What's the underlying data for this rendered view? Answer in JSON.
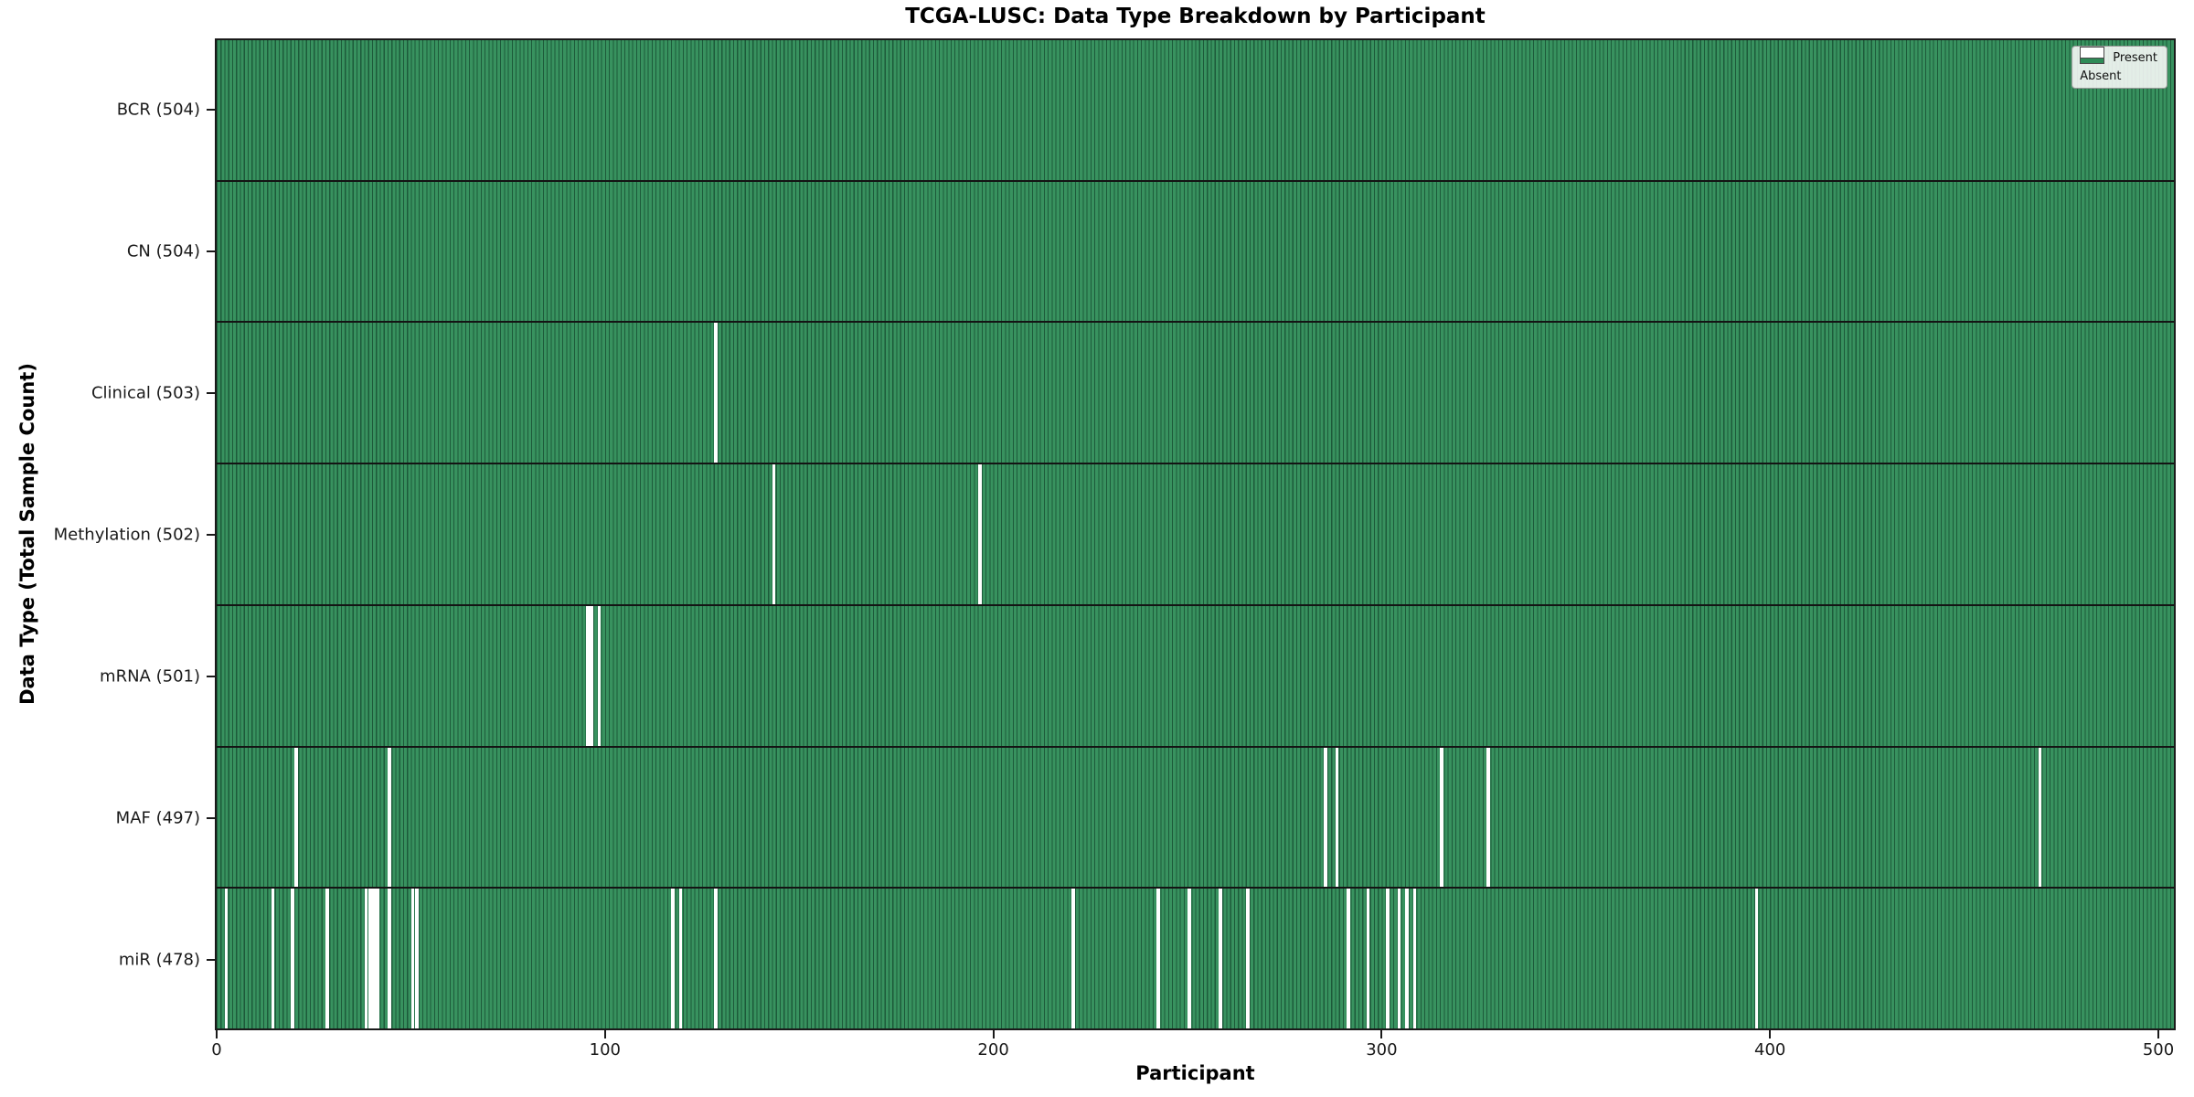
{
  "chart_data": {
    "type": "heatmap",
    "title": "TCGA-LUSC: Data Type Breakdown by Participant",
    "xlabel": "Participant",
    "ylabel": "Data Type (Total Sample Count)",
    "n_participants": 504,
    "x_range": [
      0,
      504
    ],
    "x_ticks": [
      0,
      100,
      200,
      300,
      400,
      500
    ],
    "grid": false,
    "legend_position": "upper right",
    "legend": [
      {
        "label": "Present",
        "color": "#2e8b57"
      },
      {
        "label": "Absent",
        "color": "#ffffff"
      }
    ],
    "colors": {
      "present": "#2e8b57",
      "absent": "#ffffff",
      "bar_fill": "#38925f",
      "bar_edge": "#1d5a3a",
      "axis": "#1a1a1a"
    },
    "rows": [
      {
        "name": "bcr",
        "label": "BCR (504)",
        "present_count": 504,
        "absent_participants": []
      },
      {
        "name": "cn",
        "label": "CN (504)",
        "present_count": 504,
        "absent_participants": []
      },
      {
        "name": "clinical",
        "label": "Clinical (503)",
        "present_count": 503,
        "absent_participants": [
          128
        ]
      },
      {
        "name": "methylation",
        "label": "Methylation (502)",
        "present_count": 502,
        "absent_participants": [
          143,
          196
        ]
      },
      {
        "name": "mrna",
        "label": "mRNA (501)",
        "present_count": 501,
        "absent_participants": [
          95,
          96,
          98
        ]
      },
      {
        "name": "maf",
        "label": "MAF (497)",
        "present_count": 497,
        "absent_participants": [
          20,
          44,
          285,
          288,
          315,
          327,
          469
        ]
      },
      {
        "name": "mir",
        "label": "miR (478)",
        "present_count": 478,
        "absent_participants": [
          2,
          14,
          19,
          28,
          38,
          39,
          40,
          41,
          44,
          50,
          51,
          117,
          119,
          128,
          220,
          242,
          250,
          258,
          265,
          291,
          296,
          301,
          304,
          306,
          308,
          396
        ]
      }
    ]
  }
}
